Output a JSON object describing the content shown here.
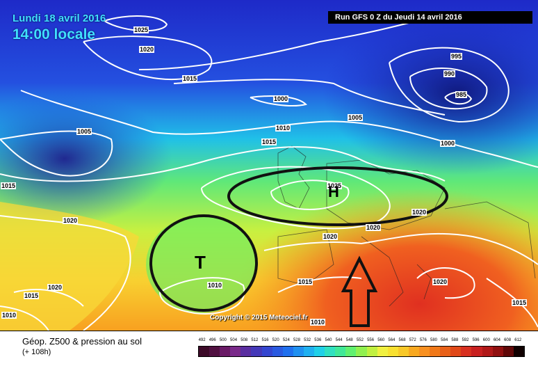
{
  "map": {
    "date": "Lundi 18 avril 2016",
    "time": "14:00 locale",
    "run": "Run GFS 0 Z du Jeudi 14 avril 2016",
    "copyright": "Copyright © 2015 Meteociel.fr",
    "isobar_labels": [
      "1025",
      "1020",
      "1015",
      "1005",
      "1000",
      "1010",
      "1015",
      "1005",
      "995",
      "990",
      "985",
      "1000",
      "1025",
      "1020",
      "1020",
      "1020",
      "1020",
      "1015",
      "1010",
      "1010",
      "1015",
      "1020",
      "1015",
      "1020",
      "1010",
      "1015"
    ],
    "markers": {
      "low": "T",
      "high": "H"
    },
    "colors": {
      "ring": "#111111",
      "arrow": "#111111"
    }
  },
  "legend": {
    "title": "Géop. Z500 & pression au sol",
    "subtitle": "(+ 108h)",
    "scale_values": [
      "492",
      "496",
      "500",
      "504",
      "508",
      "512",
      "516",
      "520",
      "524",
      "528",
      "532",
      "536",
      "540",
      "544",
      "548",
      "552",
      "556",
      "560",
      "564",
      "568",
      "572",
      "576",
      "580",
      "584",
      "588",
      "592",
      "596",
      "600",
      "604",
      "608",
      "612"
    ],
    "scale_colors": [
      "#3c0a28",
      "#501040",
      "#6a1a66",
      "#7a2a8a",
      "#5a2ea0",
      "#4438b8",
      "#3446d0",
      "#2a5ae0",
      "#2070ee",
      "#2090f0",
      "#20b0f0",
      "#20d0e8",
      "#30e0c0",
      "#40e898",
      "#60f070",
      "#90f050",
      "#c0f040",
      "#f0f040",
      "#f8e030",
      "#f8c828",
      "#f8a820",
      "#f89020",
      "#f07818",
      "#e86018",
      "#e04818",
      "#d83020",
      "#c82020",
      "#b01818",
      "#901010",
      "#600808",
      "#100000"
    ]
  }
}
